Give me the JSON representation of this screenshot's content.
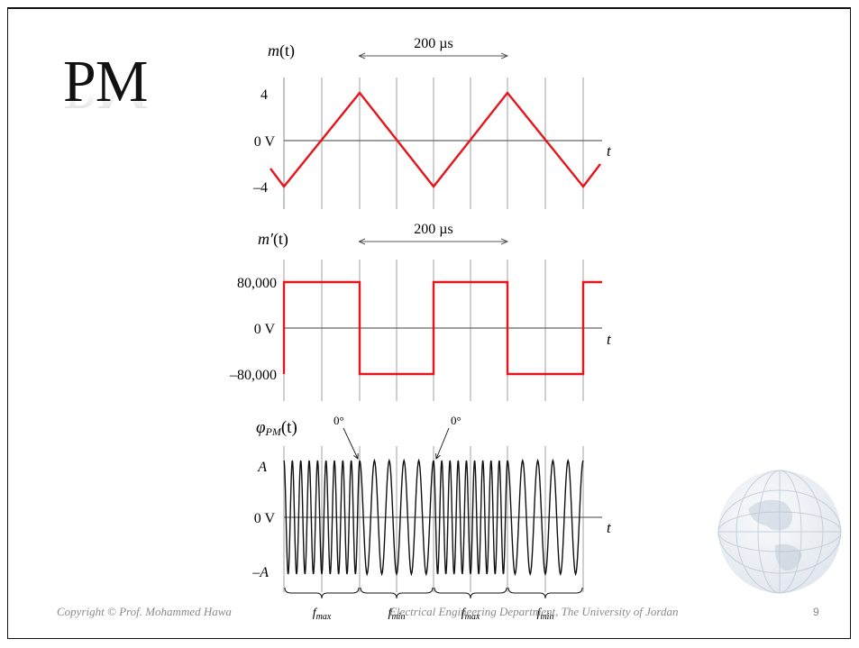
{
  "slide": {
    "title": "PM",
    "page_number": "9",
    "footer_left": "Copyright © Prof. Mohammed Hawa",
    "footer_right": "Electrical Engineering Department, The University of Jordan"
  },
  "plots": {
    "message": {
      "ylabel_main": "m",
      "ylabel_arg": "(t)",
      "tick_top": "4",
      "tick_zero": "0 V",
      "tick_bottom": "–4",
      "time_label": "t",
      "period_label": "200 µs"
    },
    "derivative": {
      "ylabel_main": "m′",
      "ylabel_arg": "(t)",
      "tick_top": "80,000",
      "tick_zero": "0 V",
      "tick_bottom": "–80,000",
      "time_label": "t",
      "period_label": "200 µs"
    },
    "pm_signal": {
      "ylabel_main": "φ",
      "ylabel_sub": "PM",
      "ylabel_arg": "(t)",
      "tick_top": "A",
      "tick_zero": "0 V",
      "tick_bottom": "–A",
      "time_label": "t",
      "phase_label_1": "0°",
      "phase_label_2": "0°",
      "segments": [
        "max",
        "min",
        "max",
        "min"
      ]
    }
  },
  "colors": {
    "waveform": "#e8141c",
    "carrier": "#111111",
    "grid": "#999999",
    "axis": "#666666"
  }
}
